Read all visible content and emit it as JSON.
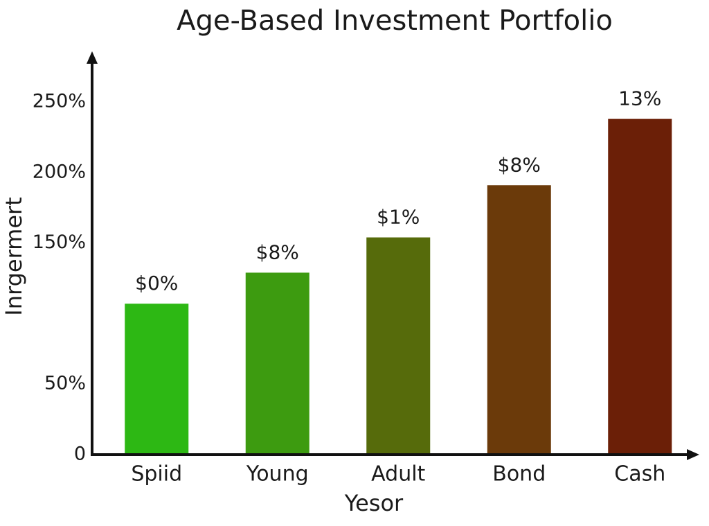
{
  "chart_data": {
    "type": "bar",
    "title": "Age-Based Investment Portfolio",
    "x_label": "Yesor",
    "y_label": "Inrgermert",
    "categories": [
      "Spiid",
      "Young",
      "Adult",
      "Bond",
      "Cash"
    ],
    "values": [
      107,
      129,
      154,
      191,
      238
    ],
    "colors": [
      "#2db814",
      "#3d9b10",
      "#566b0b",
      "#6b3a0a",
      "#6b1f07"
    ],
    "annotations": [
      "$0%",
      "$8%",
      "$1%",
      "$8%",
      "13%"
    ],
    "ylim": [
      0,
      283
    ],
    "yticks": [
      {
        "value": 0,
        "label": "0"
      },
      {
        "value": 50,
        "label": "50%"
      },
      {
        "value": 150,
        "label": "150%"
      },
      {
        "value": 200,
        "label": "200%"
      },
      {
        "value": 250,
        "label": "250%"
      }
    ],
    "grid": false
  }
}
